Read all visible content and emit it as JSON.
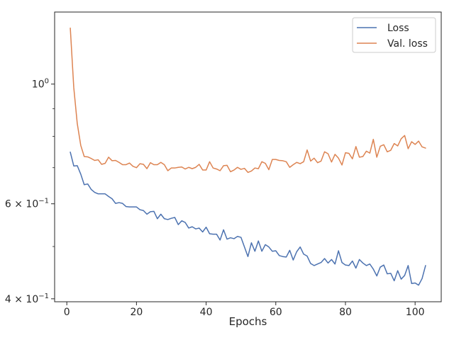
{
  "chart_data": {
    "type": "line",
    "title": "",
    "xlabel": "Epochs",
    "ylabel": "",
    "xlim": [
      -3.5,
      107.5
    ],
    "ylim": [
      0.395,
      1.36
    ],
    "yscale": "log",
    "grid": false,
    "legend_position": "top-right",
    "x_ticks": [
      {
        "value": 0,
        "label": "0"
      },
      {
        "value": 20,
        "label": "20"
      },
      {
        "value": 40,
        "label": "40"
      },
      {
        "value": 60,
        "label": "60"
      },
      {
        "value": 80,
        "label": "80"
      },
      {
        "value": 100,
        "label": "100"
      }
    ],
    "y_major_ticks": [
      {
        "value": 1.0,
        "base": "10",
        "exp": "0",
        "coef": ""
      },
      {
        "value": 0.6,
        "base": "10",
        "exp": "−1",
        "coef": "6 × "
      },
      {
        "value": 0.4,
        "base": "10",
        "exp": "−1",
        "coef": "4 × "
      }
    ],
    "y_minor_ticks": [
      0.5,
      0.7,
      0.8,
      0.9
    ],
    "series": [
      {
        "name": "Loss",
        "color": "#4c72b0",
        "x_start": 1,
        "x_step": 1,
        "values": [
          0.748,
          0.705,
          0.706,
          0.681,
          0.651,
          0.653,
          0.638,
          0.63,
          0.626,
          0.626,
          0.626,
          0.619,
          0.613,
          0.601,
          0.603,
          0.601,
          0.593,
          0.592,
          0.592,
          0.592,
          0.585,
          0.583,
          0.574,
          0.58,
          0.581,
          0.563,
          0.574,
          0.563,
          0.561,
          0.564,
          0.566,
          0.549,
          0.558,
          0.554,
          0.541,
          0.544,
          0.539,
          0.541,
          0.532,
          0.543,
          0.528,
          0.527,
          0.527,
          0.514,
          0.537,
          0.516,
          0.519,
          0.517,
          0.522,
          0.52,
          0.499,
          0.479,
          0.508,
          0.49,
          0.512,
          0.49,
          0.504,
          0.499,
          0.49,
          0.491,
          0.481,
          0.479,
          0.478,
          0.492,
          0.472,
          0.489,
          0.499,
          0.484,
          0.48,
          0.465,
          0.461,
          0.464,
          0.467,
          0.475,
          0.466,
          0.473,
          0.464,
          0.491,
          0.467,
          0.462,
          0.461,
          0.47,
          0.456,
          0.473,
          0.466,
          0.461,
          0.464,
          0.454,
          0.441,
          0.458,
          0.462,
          0.445,
          0.446,
          0.432,
          0.451,
          0.435,
          0.442,
          0.461,
          0.427,
          0.428,
          0.424,
          0.436,
          0.461
        ]
      },
      {
        "name": "Val. loss",
        "color": "#dd8452",
        "x_start": 1,
        "x_step": 1,
        "values": [
          1.27,
          0.985,
          0.845,
          0.77,
          0.734,
          0.733,
          0.728,
          0.722,
          0.724,
          0.71,
          0.713,
          0.732,
          0.721,
          0.722,
          0.716,
          0.709,
          0.709,
          0.714,
          0.704,
          0.7,
          0.712,
          0.71,
          0.697,
          0.715,
          0.709,
          0.709,
          0.716,
          0.709,
          0.691,
          0.699,
          0.699,
          0.701,
          0.702,
          0.696,
          0.701,
          0.697,
          0.701,
          0.71,
          0.693,
          0.693,
          0.718,
          0.699,
          0.696,
          0.691,
          0.706,
          0.707,
          0.688,
          0.693,
          0.701,
          0.695,
          0.698,
          0.686,
          0.69,
          0.699,
          0.697,
          0.718,
          0.713,
          0.694,
          0.725,
          0.725,
          0.722,
          0.721,
          0.718,
          0.701,
          0.709,
          0.716,
          0.712,
          0.718,
          0.755,
          0.72,
          0.729,
          0.715,
          0.72,
          0.749,
          0.743,
          0.717,
          0.741,
          0.729,
          0.708,
          0.746,
          0.744,
          0.727,
          0.766,
          0.732,
          0.734,
          0.751,
          0.745,
          0.79,
          0.732,
          0.767,
          0.772,
          0.749,
          0.754,
          0.776,
          0.768,
          0.792,
          0.803,
          0.759,
          0.782,
          0.773,
          0.784,
          0.765,
          0.761
        ]
      }
    ]
  }
}
